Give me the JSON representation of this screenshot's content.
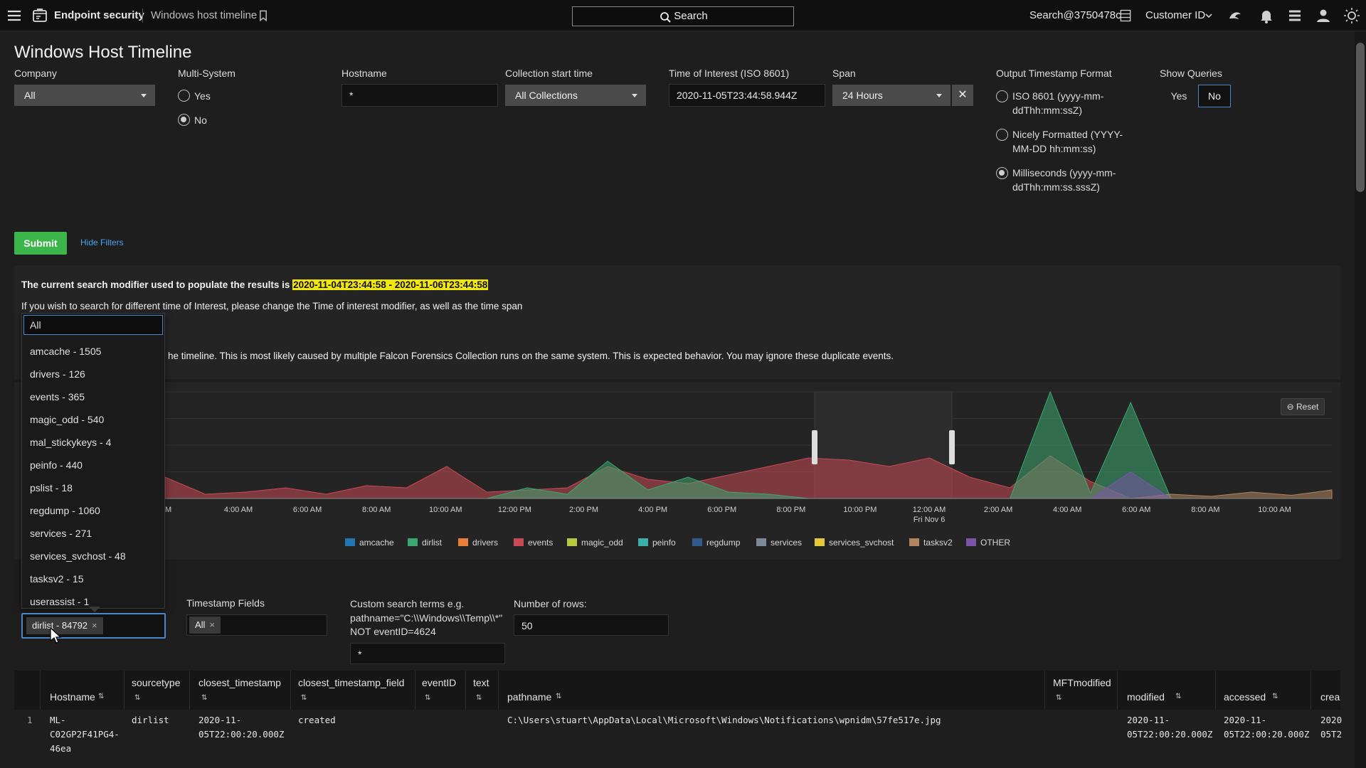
{
  "topbar": {
    "app_name": "Endpoint security",
    "page_name": "Windows host timeline",
    "search_label": "Search",
    "user": "Search@3750478c",
    "customer_label": "Customer ID"
  },
  "page": {
    "title": "Windows Host Timeline",
    "submit_label": "Submit",
    "hide_filters_label": "Hide Filters"
  },
  "filters": {
    "company": {
      "label": "Company",
      "value": "All"
    },
    "multi_system": {
      "label": "Multi-System",
      "options": [
        "Yes",
        "No"
      ],
      "selected": "No"
    },
    "hostname": {
      "label": "Hostname",
      "value": "*"
    },
    "collection_start": {
      "label": "Collection start time",
      "value": "All Collections"
    },
    "time_of_interest": {
      "label": "Time of Interest (ISO 8601)",
      "value": "2020-11-05T23:44:58.944Z"
    },
    "span": {
      "label": "Span",
      "value": "24 Hours"
    },
    "output_format": {
      "label": "Output Timestamp Format",
      "options": [
        {
          "line1": "ISO 8601 (yyyy-mm-",
          "line2": "ddThh:mm:ssZ)"
        },
        {
          "line1": "Nicely Formatted (YYYY-",
          "line2": "MM-DD hh:mm:ss)"
        },
        {
          "line1": "Milliseconds (yyyy-mm-",
          "line2": "ddThh:mm:ss.sssZ)"
        }
      ],
      "selected_index": 2
    },
    "show_queries": {
      "label": "Show Queries",
      "options": [
        "Yes",
        "No"
      ],
      "selected": "No"
    }
  },
  "notice": {
    "line1_prefix": "The current search modifier used to populate the results is",
    "line1_range": "2020-11-04T23:44:58 - 2020-11-06T23:44:58",
    "line2": "If you wish to search for different time of Interest, please change the Time of interest modifier, as well as the time span",
    "line3": "he timeline. This is most likely caused by multiple Falcon Forensics Collection runs on the same system. This is expected behavior. You may ignore these duplicate events."
  },
  "dropdown": {
    "search_value": "All",
    "items": [
      "amcache - 1505",
      "drivers - 126",
      "events - 365",
      "magic_odd - 540",
      "mal_stickykeys - 4",
      "peinfo - 440",
      "pslist - 18",
      "regdump - 1060",
      "services - 271",
      "services_svchost - 48",
      "tasksv2 - 15",
      "userassist - 1"
    ]
  },
  "lower_filters": {
    "sourcetype_chip": "dirlist - 84792",
    "timestamp_fields_label": "Timestamp Fields",
    "timestamp_chip": "All",
    "custom_search_label_1": "Custom search terms e.g.",
    "custom_search_label_2": "pathname=\"C:\\\\Windows\\\\Temp\\\\*\"",
    "custom_search_label_3": "NOT eventID=4624",
    "custom_search_value": "*",
    "rows_label": "Number of rows:",
    "rows_value": "50"
  },
  "chart_data": {
    "type": "area",
    "reset_label": "Reset",
    "x_ticks": [
      "M",
      "4:00 AM",
      "6:00 AM",
      "8:00 AM",
      "10:00 AM",
      "12:00 PM",
      "2:00 PM",
      "4:00 PM",
      "6:00 PM",
      "8:00 PM",
      "10:00 PM",
      "12:00 AM",
      "2:00 AM",
      "4:00 AM",
      "6:00 AM",
      "8:00 AM",
      "10:00 AM"
    ],
    "x_sublabel": "Fri Nov 6",
    "legend": [
      {
        "name": "amcache",
        "color": "#1f77b4"
      },
      {
        "name": "dirlist",
        "color": "#3aa870"
      },
      {
        "name": "drivers",
        "color": "#e8803c"
      },
      {
        "name": "events",
        "color": "#c94a55"
      },
      {
        "name": "magic_odd",
        "color": "#b7c93e"
      },
      {
        "name": "peinfo",
        "color": "#3bb0a8"
      },
      {
        "name": "regdump",
        "color": "#2e5a8c"
      },
      {
        "name": "services",
        "color": "#7a8a96"
      },
      {
        "name": "services_svchost",
        "color": "#e8c93c"
      },
      {
        "name": "tasksv2",
        "color": "#b08560"
      },
      {
        "name": "OTHER",
        "color": "#7a55a8"
      }
    ],
    "series": [
      {
        "name": "events",
        "values": [
          20,
          4,
          6,
          10,
          4,
          12,
          10,
          30,
          6,
          8,
          10,
          30,
          18,
          14,
          22,
          30,
          38,
          36,
          30,
          38,
          20,
          10,
          40,
          16,
          0,
          0,
          0,
          0,
          0,
          0
        ]
      },
      {
        "name": "dirlist",
        "values": [
          0,
          0,
          0,
          0,
          0,
          0,
          0,
          0,
          0,
          10,
          4,
          35,
          8,
          20,
          6,
          4,
          0,
          0,
          0,
          0,
          0,
          0,
          100,
          5,
          90,
          0,
          0,
          0,
          0,
          0
        ]
      },
      {
        "name": "tasksv2",
        "values": [
          0,
          0,
          0,
          0,
          0,
          0,
          0,
          0,
          0,
          0,
          0,
          0,
          0,
          0,
          0,
          0,
          0,
          0,
          0,
          0,
          0,
          0,
          0,
          0,
          0,
          4,
          2,
          6,
          3,
          8
        ]
      },
      {
        "name": "OTHER",
        "values": [
          0,
          0,
          0,
          0,
          0,
          0,
          0,
          0,
          0,
          0,
          0,
          0,
          0,
          0,
          0,
          0,
          0,
          0,
          0,
          0,
          0,
          0,
          0,
          0,
          25,
          0,
          0,
          0,
          0,
          0
        ]
      }
    ]
  },
  "table": {
    "columns": [
      {
        "label": "Hostname"
      },
      {
        "label": "sourcetype"
      },
      {
        "label": "closest_timestamp"
      },
      {
        "label": "closest_timestamp_field"
      },
      {
        "label": "eventID"
      },
      {
        "label": "text"
      },
      {
        "label": "pathname"
      },
      {
        "label": "MFTmodified"
      },
      {
        "label": "modified"
      },
      {
        "label": "accessed"
      },
      {
        "label": "crea"
      }
    ],
    "rows": [
      {
        "index": "1",
        "hostname_1": "ML-",
        "hostname_2": "C02GP2F41PG4-",
        "hostname_3": "46ea",
        "sourcetype": "dirlist",
        "closest_1": "2020-11-",
        "closest_2": "05T22:00:20.000Z",
        "closest_field": "created",
        "pathname": "C:\\Users\\stuart\\AppData\\Local\\Microsoft\\Windows\\Notifications\\wpnidm\\57fe517e.jpg",
        "modified_1": "2020-11-",
        "modified_2": "05T22:00:20.000Z",
        "accessed_1": "2020-11-",
        "accessed_2": "05T22:00:20.000Z",
        "crea_1": "2020",
        "crea_2": "05T2"
      }
    ]
  }
}
